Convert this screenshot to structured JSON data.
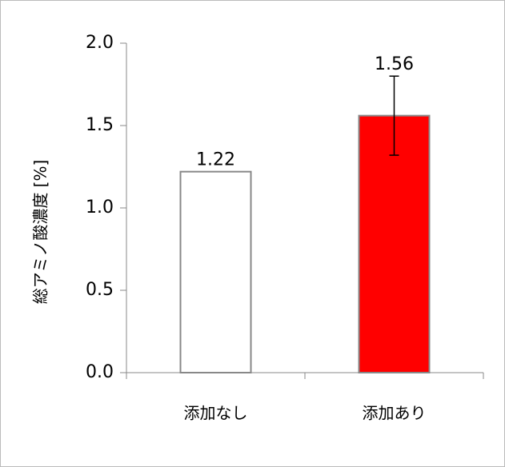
{
  "chart_data": {
    "type": "bar",
    "y_label": "総アミノ酸濃度 [%]",
    "categories": [
      "添加なし",
      "添加あり"
    ],
    "values": [
      1.22,
      1.56
    ],
    "errors": [
      null,
      0.24
    ],
    "colors": [
      "#ffffff",
      "#ff0000"
    ],
    "ylim": [
      0,
      2
    ],
    "yticks": [
      {
        "value": 0,
        "label": "0.0"
      },
      0.5,
      {
        "value": 1,
        "label": "1.0"
      },
      1.5,
      {
        "value": 2,
        "label": "2.0"
      }
    ]
  }
}
